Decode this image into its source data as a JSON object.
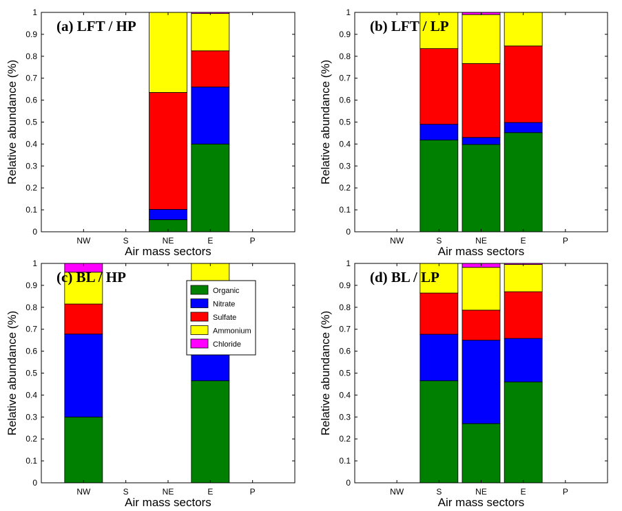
{
  "chart_data": [
    {
      "type": "bar",
      "stacked": true,
      "title": "(a) LFT / HP",
      "xlabel": "Air mass sectors",
      "ylabel": "Relative abundance (%)",
      "ylim": [
        0,
        1
      ],
      "yticks": [
        "0",
        "0.1",
        "0.2",
        "0.3",
        "0.4",
        "0.5",
        "0.6",
        "0.7",
        "0.8",
        "0.9",
        "1"
      ],
      "categories": [
        "NW",
        "S",
        "NE",
        "E",
        "P"
      ],
      "series": [
        {
          "name": "Organic",
          "values": [
            0,
            0,
            0.055,
            0.4,
            0
          ]
        },
        {
          "name": "Nitrate",
          "values": [
            0,
            0,
            0.047,
            0.26,
            0
          ]
        },
        {
          "name": "Sulfate",
          "values": [
            0,
            0,
            0.533,
            0.165,
            0
          ]
        },
        {
          "name": "Ammonium",
          "values": [
            0,
            0,
            0.365,
            0.17,
            0
          ]
        },
        {
          "name": "Chloride",
          "values": [
            0,
            0,
            0,
            0.005,
            0
          ]
        }
      ],
      "legend": false
    },
    {
      "type": "bar",
      "stacked": true,
      "title": "(b) LFT / LP",
      "xlabel": "Air mass sectors",
      "ylabel": "Relative abundance (%)",
      "ylim": [
        0,
        1
      ],
      "yticks": [
        "0",
        "0.1",
        "0.2",
        "0.3",
        "0.4",
        "0.5",
        "0.6",
        "0.7",
        "0.8",
        "0.9",
        "1"
      ],
      "categories": [
        "NW",
        "S",
        "NE",
        "E",
        "P"
      ],
      "series": [
        {
          "name": "Organic",
          "values": [
            0,
            0.418,
            0.398,
            0.452,
            0
          ]
        },
        {
          "name": "Nitrate",
          "values": [
            0,
            0.072,
            0.032,
            0.046,
            0
          ]
        },
        {
          "name": "Sulfate",
          "values": [
            0,
            0.345,
            0.337,
            0.349,
            0
          ]
        },
        {
          "name": "Ammonium",
          "values": [
            0,
            0.165,
            0.223,
            0.153,
            0
          ]
        },
        {
          "name": "Chloride",
          "values": [
            0,
            0,
            0.01,
            0,
            0
          ]
        }
      ],
      "legend": false
    },
    {
      "type": "bar",
      "stacked": true,
      "title": "(c) BL / HP",
      "xlabel": "Air mass sectors",
      "ylabel": "Relative abundance (%)",
      "ylim": [
        0,
        1
      ],
      "yticks": [
        "0",
        "0.1",
        "0.2",
        "0.3",
        "0.4",
        "0.5",
        "0.6",
        "0.7",
        "0.8",
        "0.9",
        "1"
      ],
      "categories": [
        "NW",
        "S",
        "NE",
        "E",
        "P"
      ],
      "series": [
        {
          "name": "Organic",
          "values": [
            0.3,
            0,
            0,
            0.465,
            0
          ]
        },
        {
          "name": "Nitrate",
          "values": [
            0.378,
            0,
            0,
            0.213,
            0
          ]
        },
        {
          "name": "Sulfate",
          "values": [
            0.137,
            0,
            0,
            0.165,
            0
          ]
        },
        {
          "name": "Ammonium",
          "values": [
            0.145,
            0,
            0,
            0.157,
            0
          ]
        },
        {
          "name": "Chloride",
          "values": [
            0.04,
            0,
            0,
            0,
            0
          ]
        }
      ],
      "legend": true,
      "legend_position": "top-right"
    },
    {
      "type": "bar",
      "stacked": true,
      "title": "(d) BL / LP",
      "xlabel": "Air mass sectors",
      "ylabel": "Relative abundance (%)",
      "ylim": [
        0,
        1
      ],
      "yticks": [
        "0",
        "0.1",
        "0.2",
        "0.3",
        "0.4",
        "0.5",
        "0.6",
        "0.7",
        "0.8",
        "0.9",
        "1"
      ],
      "categories": [
        "NW",
        "S",
        "NE",
        "E",
        "P"
      ],
      "series": [
        {
          "name": "Organic",
          "values": [
            0,
            0.465,
            0.27,
            0.46,
            0
          ]
        },
        {
          "name": "Nitrate",
          "values": [
            0,
            0.212,
            0.38,
            0.198,
            0
          ]
        },
        {
          "name": "Sulfate",
          "values": [
            0,
            0.188,
            0.137,
            0.213,
            0
          ]
        },
        {
          "name": "Ammonium",
          "values": [
            0,
            0.135,
            0.195,
            0.124,
            0
          ]
        },
        {
          "name": "Chloride",
          "values": [
            0,
            0,
            0.018,
            0.005,
            0
          ]
        }
      ],
      "legend": false
    }
  ],
  "series_colors": {
    "Organic": "#008000",
    "Nitrate": "#0000ff",
    "Sulfate": "#ff0000",
    "Ammonium": "#ffff00",
    "Chloride": "#ff00ff"
  }
}
